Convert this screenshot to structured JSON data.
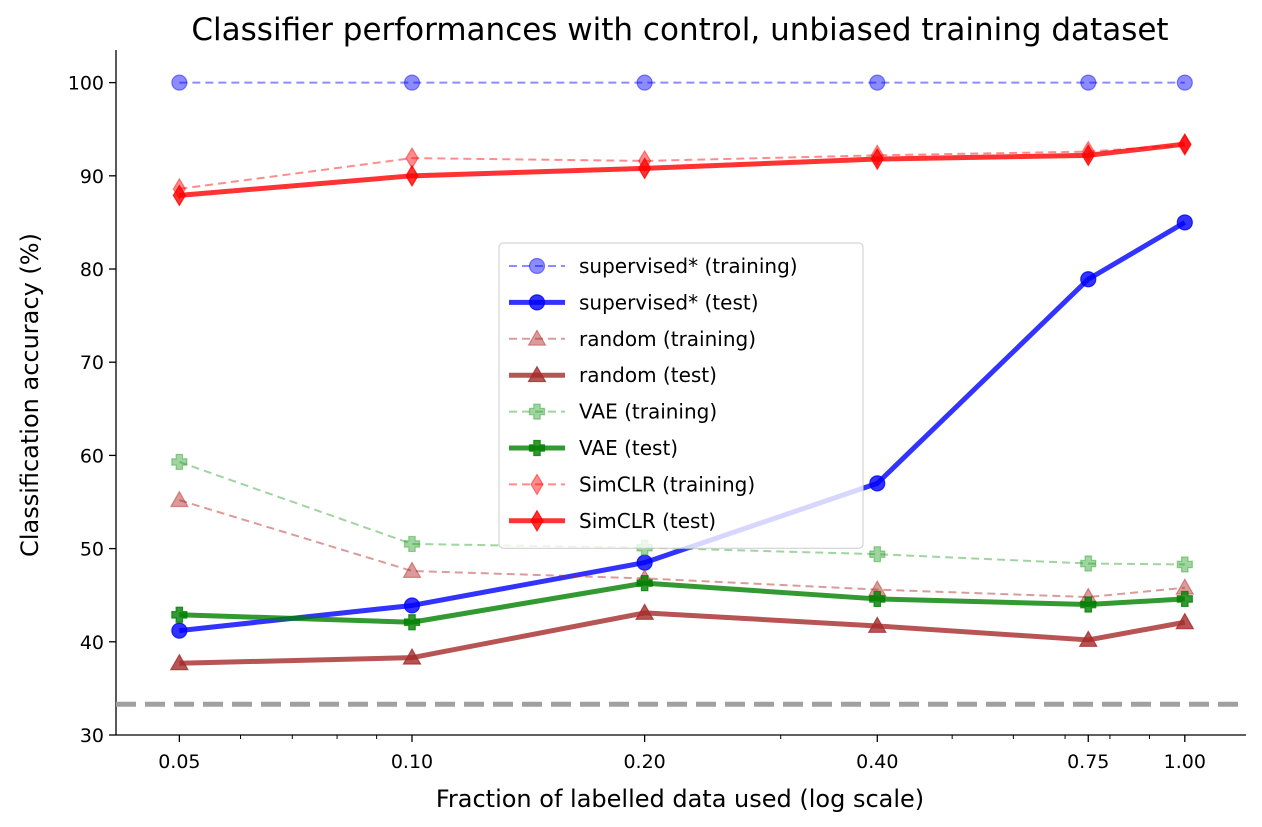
{
  "chart_data": {
    "type": "line",
    "title": "Classifier performances with control, unbiased training dataset",
    "xlabel": "Fraction of labelled data used (log scale)",
    "ylabel": "Classification accuracy (%)",
    "x_scale": "log",
    "x": [
      0.05,
      0.1,
      0.2,
      0.4,
      0.75,
      1.0
    ],
    "x_tick_labels": [
      "0.05",
      "0.10",
      "0.20",
      "0.40",
      "0.75",
      "1.00"
    ],
    "ylim": [
      30,
      103.5
    ],
    "y_ticks": [
      30,
      40,
      50,
      60,
      70,
      80,
      90,
      100
    ],
    "grid": false,
    "legend_position": "center",
    "reference_line": {
      "y": 33.3,
      "color": "#a0a0a0",
      "style": "dashed"
    },
    "series": [
      {
        "name": "supervised* (training)",
        "values": [
          100,
          100,
          100,
          100,
          100,
          100
        ],
        "color": "#0000ff",
        "marker": "circle",
        "style": "dashed"
      },
      {
        "name": "supervised* (test)",
        "values": [
          41.2,
          43.9,
          48.5,
          57.0,
          78.9,
          85.0
        ],
        "color": "#0000ff",
        "marker": "circle",
        "style": "solid"
      },
      {
        "name": "random (training)",
        "values": [
          55.2,
          47.6,
          46.8,
          45.6,
          44.8,
          45.8
        ],
        "color": "#b22222",
        "marker": "triangle",
        "style": "dashed"
      },
      {
        "name": "random (test)",
        "values": [
          37.7,
          38.3,
          43.1,
          41.7,
          40.2,
          42.1
        ],
        "color": "#a52a2a",
        "marker": "triangle",
        "style": "solid"
      },
      {
        "name": "VAE (training)",
        "values": [
          59.3,
          50.5,
          50.1,
          49.4,
          48.4,
          48.3
        ],
        "color": "#2ca02c",
        "marker": "plus",
        "style": "dashed"
      },
      {
        "name": "VAE (test)",
        "values": [
          42.9,
          42.1,
          46.3,
          44.6,
          44.0,
          44.6
        ],
        "color": "#008000",
        "marker": "plus",
        "style": "solid"
      },
      {
        "name": "SimCLR (training)",
        "values": [
          88.6,
          91.9,
          91.6,
          92.2,
          92.6,
          93.3
        ],
        "color": "#ff0000",
        "marker": "thin_diamond",
        "style": "dashed"
      },
      {
        "name": "SimCLR (test)",
        "values": [
          87.9,
          90.0,
          90.8,
          91.8,
          92.2,
          93.4
        ],
        "color": "#ff0000",
        "marker": "thin_diamond",
        "style": "solid"
      }
    ]
  }
}
